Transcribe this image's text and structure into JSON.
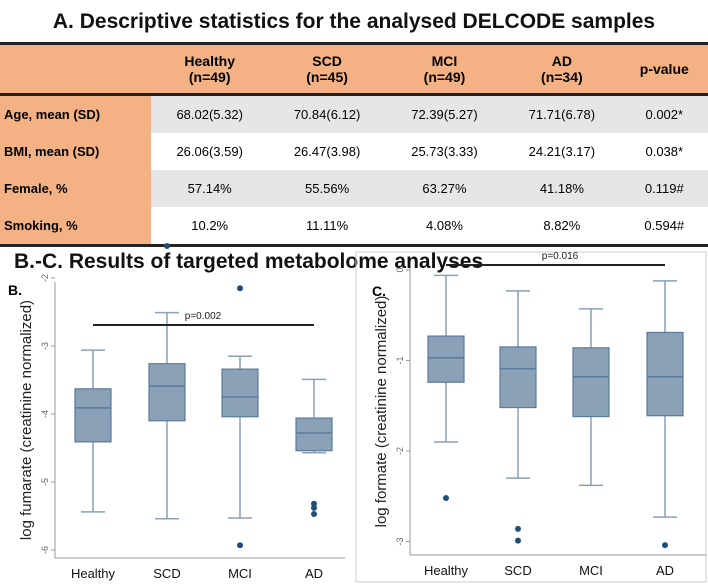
{
  "title_a": "A. Descriptive statistics for the analysed DELCODE samples",
  "title_bc": "B.-C. Results of targeted metabolome analyses",
  "table": {
    "headers": [
      [
        "",
        ""
      ],
      [
        "Healthy",
        "(n=49)"
      ],
      [
        "SCD",
        "(n=45)"
      ],
      [
        "MCI",
        "(n=49)"
      ],
      [
        "AD",
        "(n=34)"
      ],
      [
        "p-value",
        ""
      ]
    ],
    "rows": [
      [
        "Age, mean (SD)",
        "68.02(5.32)",
        "70.84(6.12)",
        "72.39(5.27)",
        "71.71(6.78)",
        "0.002*"
      ],
      [
        "BMI, mean (SD)",
        "26.06(3.59)",
        "26.47(3.98)",
        "25.73(3.33)",
        "24.21(3.17)",
        "0.038*"
      ],
      [
        "Female, %",
        "57.14%",
        "55.56%",
        "63.27%",
        "41.18%",
        "0.119#"
      ],
      [
        "Smoking, %",
        "10.2%",
        "11.11%",
        "4.08%",
        "8.82%",
        "0.594#"
      ]
    ]
  },
  "colors": {
    "box": "#8aa1b8",
    "edge": "#5c7a99",
    "outlier": "#1f4e79",
    "header": "#f4b183"
  },
  "chart_data": [
    {
      "type": "box",
      "panel": "B.",
      "ylabel": "log fumarate (creatinine normalized)",
      "categories": [
        "Healthy",
        "SCD",
        "MCI",
        "AD"
      ],
      "ylim": [
        -6.2,
        -1.4
      ],
      "yticks": [
        -2,
        -3,
        -4,
        -5,
        -6
      ],
      "annotation": "p=0.002",
      "annotation_span": [
        "Healthy",
        "AD"
      ],
      "boxes": [
        {
          "whisker_high": -3.06,
          "q3": -3.63,
          "median": -3.91,
          "q1": -4.41,
          "whisker_low": -5.44,
          "outliers": []
        },
        {
          "whisker_high": -2.51,
          "q3": -3.26,
          "median": -3.59,
          "q1": -4.1,
          "whisker_low": -5.54,
          "outliers": [
            -1.53
          ]
        },
        {
          "whisker_high": -3.15,
          "q3": -3.34,
          "median": -3.75,
          "q1": -4.04,
          "whisker_low": -5.53,
          "outliers": [
            -2.15,
            -5.93
          ]
        },
        {
          "whisker_high": -3.49,
          "q3": -4.06,
          "median": -4.28,
          "q1": -4.54,
          "whisker_low": -4.57,
          "outliers": [
            -5.32,
            -5.38,
            -5.47
          ]
        }
      ]
    },
    {
      "type": "box",
      "panel": "C.",
      "ylabel": "log formate (creatinine normalized)",
      "categories": [
        "Healthy",
        "SCD",
        "MCI",
        "AD"
      ],
      "ylim": [
        -3.15,
        0.1
      ],
      "yticks": [
        0,
        -1,
        -2,
        -3
      ],
      "annotation": "p=0.016",
      "annotation_span": [
        "Healthy",
        "AD"
      ],
      "boxes": [
        {
          "whisker_high": -0.06,
          "q3": -0.73,
          "median": -0.97,
          "q1": -1.24,
          "whisker_low": -1.9,
          "outliers": [
            -2.52
          ]
        },
        {
          "whisker_high": -0.23,
          "q3": -0.85,
          "median": -1.09,
          "q1": -1.52,
          "whisker_low": -2.3,
          "outliers": [
            -2.86,
            -2.99
          ]
        },
        {
          "whisker_high": -0.43,
          "q3": -0.86,
          "median": -1.18,
          "q1": -1.62,
          "whisker_low": -2.38,
          "outliers": []
        },
        {
          "whisker_high": -0.12,
          "q3": -0.69,
          "median": -1.18,
          "q1": -1.61,
          "whisker_low": -2.73,
          "outliers": [
            -3.04
          ]
        }
      ]
    }
  ]
}
